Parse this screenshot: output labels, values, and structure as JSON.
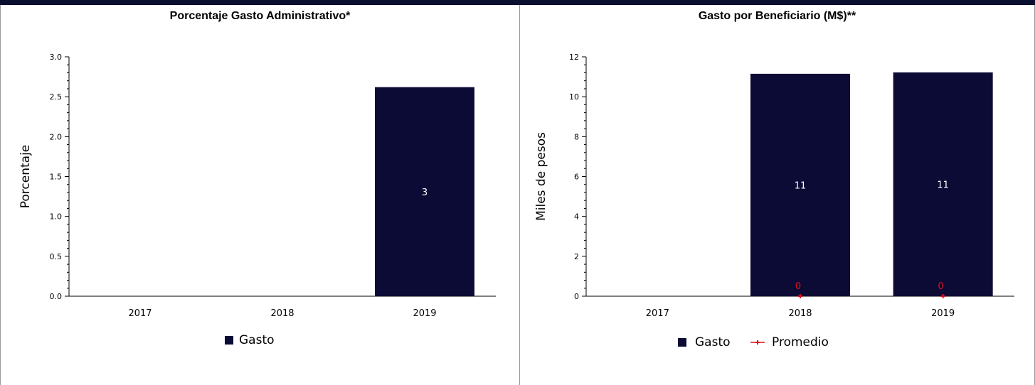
{
  "colors": {
    "bar": "#0b0b35",
    "promedio": "#e01020",
    "axis": "#000000",
    "bar_label": "#ffffff"
  },
  "chart_data": [
    {
      "type": "bar",
      "title": "Porcentaje Gasto Administrativo*",
      "ylabel": "Porcentaje",
      "xlabel": "",
      "categories": [
        "2017",
        "2018",
        "2019"
      ],
      "ylim": [
        0,
        3
      ],
      "y_ticks": [
        "0.0",
        "0.5",
        "1.0",
        "1.5",
        "2.0",
        "2.5",
        "3.0"
      ],
      "series": [
        {
          "name": "Gasto",
          "values": [
            null,
            null,
            2.62
          ],
          "labels": [
            "",
            "",
            "3"
          ]
        }
      ],
      "legend": {
        "position": "bottom",
        "items": [
          "Gasto"
        ]
      },
      "grid": false
    },
    {
      "type": "bar",
      "title": "Gasto por Beneficiario (M$)**",
      "ylabel": "Miles de pesos",
      "xlabel": "",
      "categories": [
        "2017",
        "2018",
        "2019"
      ],
      "ylim": [
        0,
        12
      ],
      "y_ticks": [
        "0",
        "2",
        "4",
        "6",
        "8",
        "10",
        "12"
      ],
      "series": [
        {
          "name": "Gasto",
          "values": [
            null,
            11.15,
            11.22
          ],
          "labels": [
            "",
            "11",
            "11"
          ]
        },
        {
          "name": "Promedio",
          "type": "line",
          "values": [
            null,
            0,
            0
          ],
          "labels": [
            "",
            "0",
            "0"
          ]
        }
      ],
      "legend": {
        "position": "bottom",
        "items": [
          "Gasto",
          "Promedio"
        ]
      },
      "grid": false
    }
  ]
}
